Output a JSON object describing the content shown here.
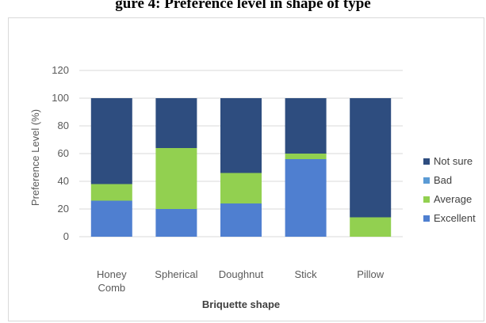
{
  "caption": "gure 4: Preference level in shape of type",
  "chart_data": {
    "type": "bar",
    "stacked": true,
    "categories": [
      "Honey Comb",
      "Spherical",
      "Doughnut",
      "Stick",
      "Pillow"
    ],
    "category_lines": [
      [
        "Honey",
        "Comb"
      ],
      [
        "Spherical"
      ],
      [
        "Doughnut"
      ],
      [
        "Stick"
      ],
      [
        "Pillow"
      ]
    ],
    "series": [
      {
        "name": "Excellent",
        "color": "#4f7fd0",
        "values": [
          26,
          20,
          24,
          56,
          0
        ]
      },
      {
        "name": "Average",
        "color": "#92d050",
        "values": [
          12,
          44,
          22,
          4,
          14
        ]
      },
      {
        "name": "Bad",
        "color": "#5b9bd5",
        "values": [
          0,
          0,
          0,
          0,
          0
        ]
      },
      {
        "name": "Not sure",
        "color": "#2e4d7f",
        "values": [
          62,
          36,
          54,
          40,
          86
        ]
      }
    ],
    "legend_order": [
      "Not sure",
      "Bad",
      "Average",
      "Excellent"
    ],
    "legend_position": "right",
    "xlabel": "Briquette shape",
    "ylabel": "Preference Level (%)",
    "ylim": [
      0,
      120
    ],
    "yticks": [
      0,
      20,
      40,
      60,
      80,
      100,
      120
    ],
    "grid": true
  }
}
